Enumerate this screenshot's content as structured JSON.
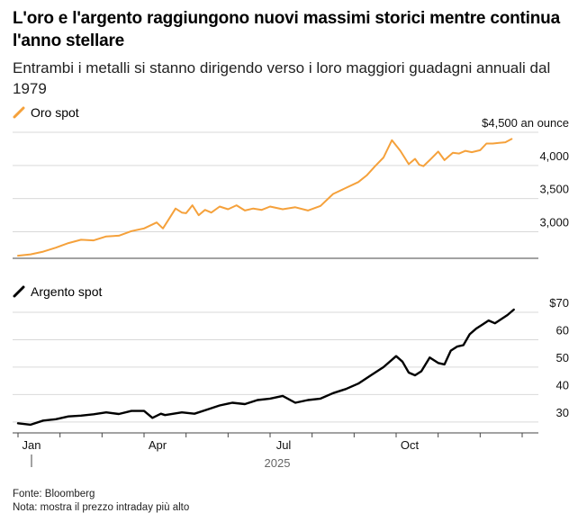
{
  "title": "L'oro e l'argento raggiungono nuovi massimi storici mentre continua l'anno stellare",
  "subtitle": "Entrambi i metalli si stanno dirigendo verso i loro maggiori guadagni annuali dal 1979",
  "colors": {
    "gold": "#f5a13b",
    "silver": "#000000",
    "grid": "#d9d9d9",
    "axis": "#444444"
  },
  "x_axis": {
    "ticks": [
      "Jan",
      "Apr",
      "Jul",
      "Oct"
    ],
    "year": "2025"
  },
  "footer": {
    "source": "Fonte: Bloomberg",
    "note": "Nota: mostra il prezzo intraday più alto"
  },
  "chart_data": [
    {
      "type": "line",
      "legend": "Oro spot",
      "unit_label": "$4,500 an ounce",
      "y_ticks": [
        4500,
        4000,
        3500,
        3000
      ],
      "y_tick_labels": [
        "$4,500 an ounce",
        "4,000",
        "3,500",
        "3,000"
      ],
      "ylim": [
        2600,
        4500
      ],
      "x_domain": [
        0,
        12
      ],
      "x": [
        0,
        0.3,
        0.6,
        0.9,
        1.2,
        1.5,
        1.8,
        2.1,
        2.4,
        2.7,
        3.0,
        3.3,
        3.45,
        3.6,
        3.75,
        3.9,
        4.0,
        4.15,
        4.3,
        4.45,
        4.6,
        4.8,
        5.0,
        5.2,
        5.4,
        5.6,
        5.8,
        6.0,
        6.3,
        6.6,
        6.9,
        7.2,
        7.5,
        7.8,
        8.1,
        8.3,
        8.5,
        8.7,
        8.9,
        9.1,
        9.3,
        9.45,
        9.55,
        9.65,
        9.8,
        10.0,
        10.15,
        10.35,
        10.5,
        10.65,
        10.8,
        11.0,
        11.15,
        11.3,
        11.45,
        11.6,
        11.75
      ],
      "values": [
        2640,
        2660,
        2700,
        2760,
        2830,
        2880,
        2870,
        2930,
        2940,
        3010,
        3050,
        3140,
        3050,
        3200,
        3350,
        3290,
        3280,
        3400,
        3250,
        3330,
        3290,
        3380,
        3340,
        3400,
        3320,
        3350,
        3330,
        3380,
        3340,
        3370,
        3320,
        3390,
        3570,
        3660,
        3750,
        3850,
        3990,
        4120,
        4380,
        4220,
        4020,
        4100,
        4010,
        3990,
        4080,
        4210,
        4080,
        4190,
        4180,
        4220,
        4200,
        4230,
        4330,
        4330,
        4340,
        4350,
        4400
      ]
    },
    {
      "type": "line",
      "legend": "Argento spot",
      "unit_label": "$70",
      "y_ticks": [
        70,
        60,
        50,
        40,
        30
      ],
      "y_tick_labels": [
        "$70",
        "60",
        "50",
        "40",
        "30"
      ],
      "ylim": [
        26,
        70
      ],
      "x_domain": [
        0,
        12
      ],
      "x": [
        0,
        0.3,
        0.6,
        0.9,
        1.2,
        1.5,
        1.8,
        2.1,
        2.4,
        2.7,
        3.0,
        3.2,
        3.4,
        3.5,
        3.7,
        3.9,
        4.2,
        4.5,
        4.8,
        5.1,
        5.4,
        5.7,
        6.0,
        6.3,
        6.6,
        6.9,
        7.2,
        7.5,
        7.8,
        8.1,
        8.4,
        8.7,
        9.0,
        9.15,
        9.3,
        9.45,
        9.6,
        9.8,
        10.0,
        10.15,
        10.3,
        10.45,
        10.6,
        10.75,
        10.9,
        11.05,
        11.2,
        11.35,
        11.5,
        11.65,
        11.8
      ],
      "values": [
        29.5,
        29.0,
        30.5,
        31.0,
        32.0,
        32.3,
        32.8,
        33.5,
        32.9,
        34.0,
        34.0,
        31.5,
        33.0,
        32.5,
        33.0,
        33.5,
        33.0,
        34.5,
        36.0,
        37.0,
        36.5,
        38.0,
        38.5,
        39.5,
        37.0,
        38.0,
        38.5,
        40.5,
        42.0,
        44.0,
        47.0,
        50.0,
        54.0,
        52.0,
        48.0,
        47.0,
        48.5,
        53.5,
        51.5,
        51.0,
        56.0,
        57.5,
        58.0,
        62.0,
        64.0,
        65.5,
        67.0,
        66.0,
        67.5,
        69.0,
        71.0
      ]
    }
  ]
}
